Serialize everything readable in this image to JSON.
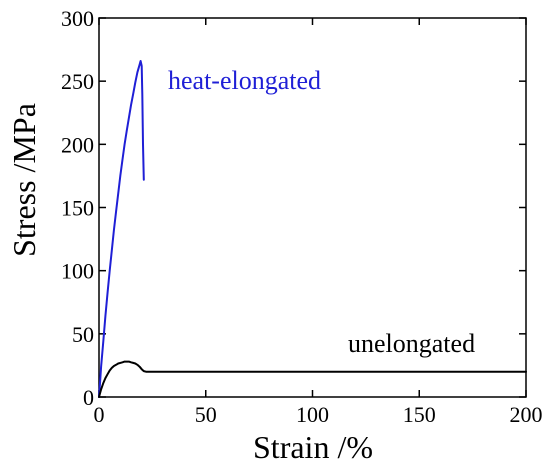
{
  "chart_data": {
    "type": "line",
    "title": "",
    "xlabel": "Strain /%",
    "ylabel": "Stress /MPa",
    "xlim": [
      0,
      200
    ],
    "ylim": [
      0,
      300
    ],
    "xticks": [
      0,
      50,
      100,
      150,
      200
    ],
    "yticks": [
      0,
      50,
      100,
      150,
      200,
      250,
      300
    ],
    "grid": false,
    "legend": "none",
    "series": [
      {
        "color": "#1f1fd6",
        "x": [
          0,
          0.5,
          1,
          2,
          3,
          4,
          5,
          6,
          7,
          8,
          9,
          10,
          11,
          12,
          13,
          14,
          15,
          16,
          17,
          18,
          19,
          19.5,
          20.0,
          20.3,
          20.6,
          21.0
        ],
        "y": [
          0,
          12,
          24,
          44,
          64,
          82,
          100,
          116,
          132,
          147,
          161,
          175,
          188,
          200,
          211,
          221,
          231,
          240,
          249,
          257,
          263,
          266,
          262,
          240,
          200,
          172
        ]
      },
      {
        "color": "#000000",
        "x": [
          0,
          1,
          2,
          3,
          4,
          5,
          6,
          7,
          8,
          9,
          10,
          11,
          12,
          13,
          14,
          15,
          16,
          17,
          18,
          19,
          20,
          21,
          22,
          30,
          50,
          70,
          90,
          110,
          130,
          150,
          170,
          190,
          200
        ],
        "y": [
          0,
          6,
          11,
          15,
          18,
          21,
          23,
          24.5,
          25.5,
          26.5,
          27,
          27.5,
          28,
          28,
          28,
          27.5,
          27,
          26.5,
          25.5,
          24,
          22,
          20.5,
          20,
          20,
          20,
          20,
          20,
          20,
          20,
          20,
          20,
          20,
          20
        ]
      }
    ],
    "annotations": [
      {
        "text": "heat-elongated",
        "color": "#1f1fd6"
      },
      {
        "text": "unelongated",
        "color": "#000000"
      }
    ]
  },
  "colors": {
    "axis": "#000000",
    "background": "#ffffff"
  }
}
